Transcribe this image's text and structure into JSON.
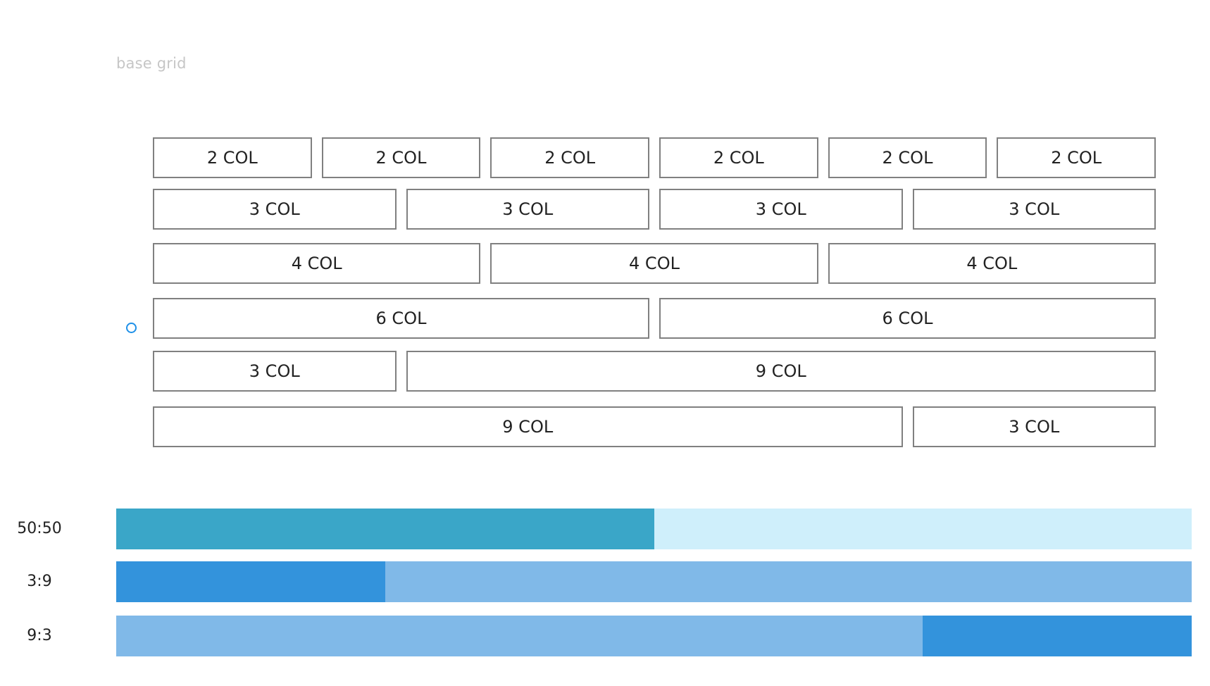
{
  "title": "base grid",
  "grid": {
    "columns": 12,
    "rows": [
      {
        "spans": [
          2,
          2,
          2,
          2,
          2,
          2
        ],
        "labels": [
          "2 COL",
          "2 COL",
          "2 COL",
          "2 COL",
          "2 COL",
          "2 COL"
        ]
      },
      {
        "spans": [
          3,
          3,
          3,
          3
        ],
        "labels": [
          "3 COL",
          "3 COL",
          "3 COL",
          "3 COL"
        ]
      },
      {
        "spans": [
          4,
          4,
          4
        ],
        "labels": [
          "4 COL",
          "4 COL",
          "4 COL"
        ]
      },
      {
        "spans": [
          6,
          6
        ],
        "labels": [
          "6 COL",
          "6 COL"
        ]
      },
      {
        "spans": [
          3,
          9
        ],
        "labels": [
          "3 COL",
          "9 COL"
        ]
      },
      {
        "spans": [
          9,
          3
        ],
        "labels": [
          "9 COL",
          "3 COL"
        ]
      }
    ]
  },
  "ratios": [
    {
      "label": "50:50",
      "segments": [
        {
          "value": 50,
          "color": "#3aa6c8"
        },
        {
          "value": 50,
          "color": "#cfeffb"
        }
      ]
    },
    {
      "label": "3:9",
      "segments": [
        {
          "value": 3,
          "color": "#3393dc"
        },
        {
          "value": 9,
          "color": "#80b9e8"
        }
      ]
    },
    {
      "label": "9:3",
      "segments": [
        {
          "value": 9,
          "color": "#80b9e8"
        },
        {
          "value": 3,
          "color": "#3393dc"
        }
      ]
    }
  ],
  "colors": {
    "cell_border": "#808080",
    "marker": "#1e90e8",
    "title_text": "#c6c6c6"
  }
}
